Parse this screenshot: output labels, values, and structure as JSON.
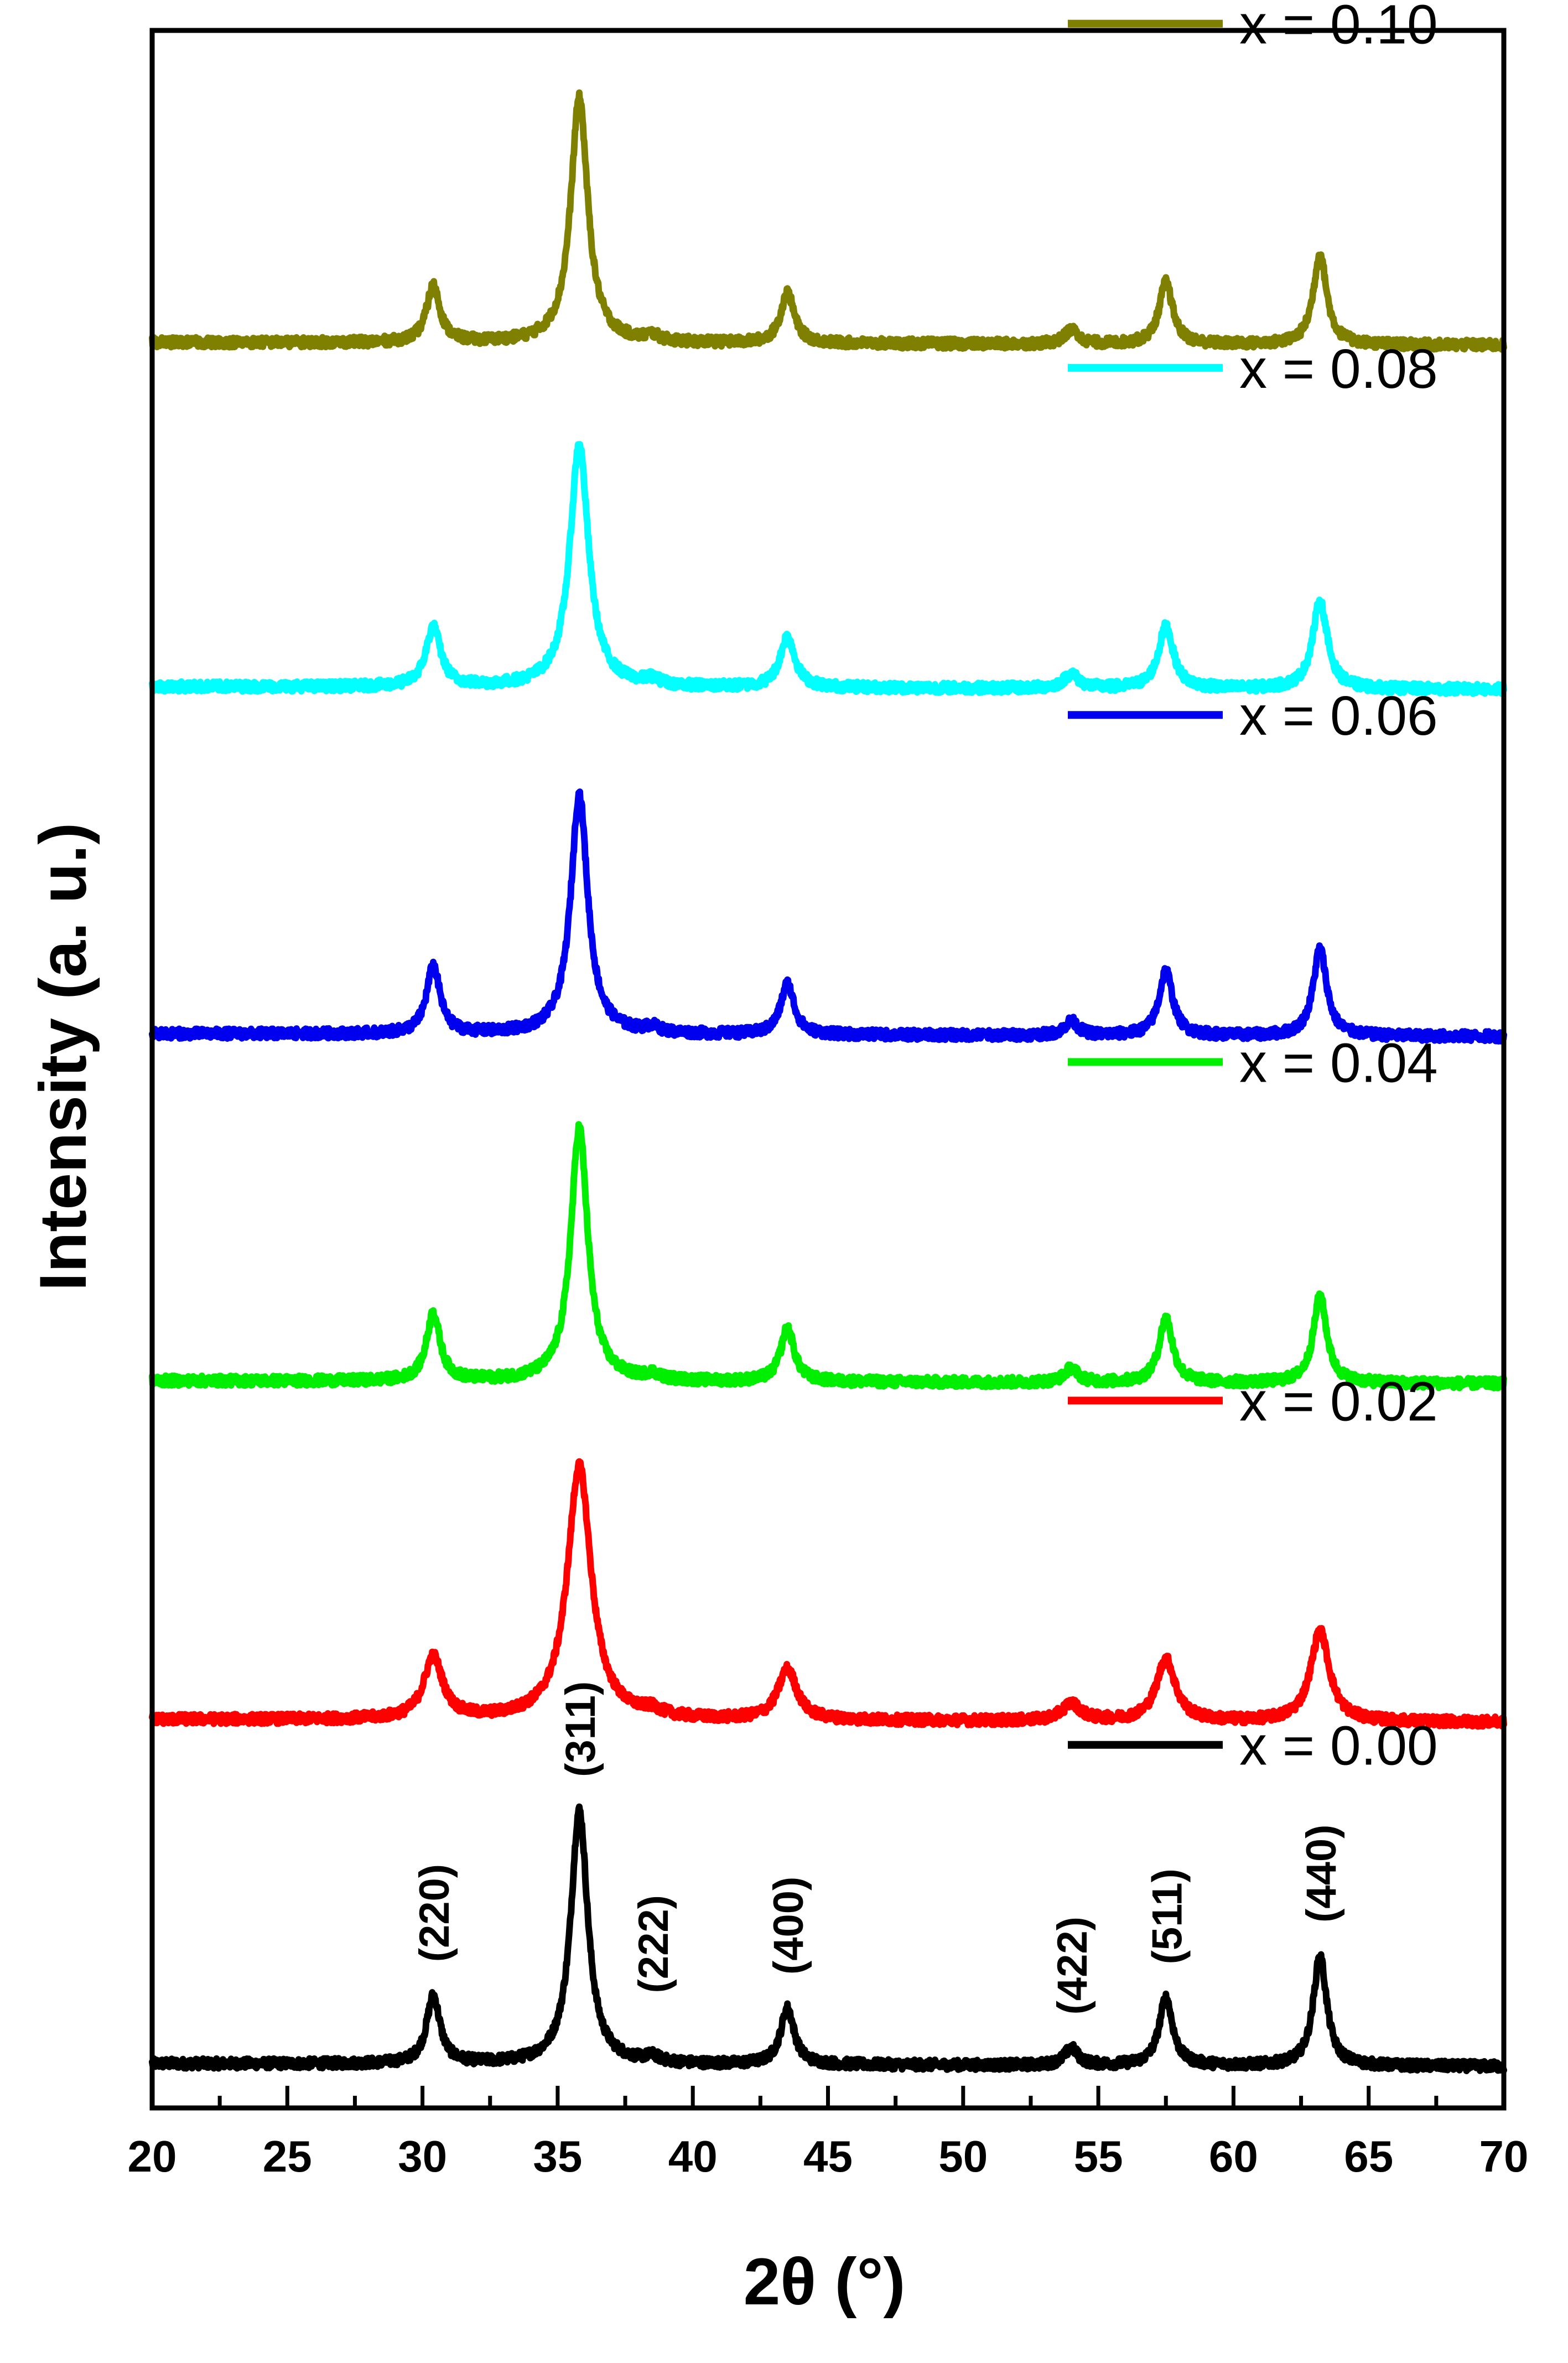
{
  "chart_data": {
    "type": "line",
    "title": "",
    "xlabel": "2θ (°)",
    "ylabel": "Intensity (a. u.)",
    "xlim": [
      20,
      70
    ],
    "xticks": [
      20,
      25,
      30,
      35,
      40,
      45,
      50,
      55,
      60,
      65,
      70
    ],
    "xtick_labels": [
      "20",
      "25",
      "30",
      "35",
      "40",
      "45",
      "50",
      "55",
      "60",
      "65",
      "70"
    ],
    "y_ticks_shown": false,
    "grid": false,
    "legend": "inline labels at upper right of each trace",
    "peaks": [
      {
        "position": 30.4,
        "label": "(220)"
      },
      {
        "position": 35.8,
        "label": "(311)"
      },
      {
        "position": 38.5,
        "label": "(222)"
      },
      {
        "position": 43.5,
        "label": "(400)"
      },
      {
        "position": 54.0,
        "label": "(422)"
      },
      {
        "position": 57.5,
        "label": "(511)"
      },
      {
        "position": 63.2,
        "label": "(440)"
      }
    ],
    "series": [
      {
        "name": "x = 0.00",
        "color": "#000000",
        "offset": 0,
        "baseline": 1.0,
        "slope": -0.1,
        "widths": 1.0,
        "peaks": [
          [
            30.4,
            2.4
          ],
          [
            35.8,
            9.0
          ],
          [
            38.5,
            0.2
          ],
          [
            43.5,
            2.0
          ],
          [
            54.0,
            0.6
          ],
          [
            57.5,
            2.4
          ],
          [
            63.2,
            3.9
          ]
        ]
      },
      {
        "name": "x = 0.02",
        "color": "#ff0000",
        "offset": 12.2,
        "baseline": 1.0,
        "slope": -0.1,
        "widths": 1.4,
        "peaks": [
          [
            30.4,
            2.2
          ],
          [
            35.8,
            9.0
          ],
          [
            38.5,
            0.2
          ],
          [
            43.5,
            1.8
          ],
          [
            54.0,
            0.6
          ],
          [
            57.5,
            2.2
          ],
          [
            63.2,
            3.2
          ]
        ]
      },
      {
        "name": "x = 0.04",
        "color": "#00ee00",
        "offset": 24.2,
        "baseline": 1.0,
        "slope": -0.1,
        "widths": 1.0,
        "peaks": [
          [
            30.4,
            2.4
          ],
          [
            35.8,
            9.0
          ],
          [
            38.5,
            0.2
          ],
          [
            43.5,
            1.9
          ],
          [
            54.0,
            0.5
          ],
          [
            57.5,
            2.3
          ],
          [
            63.2,
            3.1
          ]
        ]
      },
      {
        "name": "x = 0.06",
        "color": "#0000ee",
        "offset": 36.5,
        "baseline": 1.0,
        "slope": -0.1,
        "widths": 1.0,
        "peaks": [
          [
            30.4,
            2.4
          ],
          [
            35.8,
            8.5
          ],
          [
            38.5,
            0.2
          ],
          [
            43.5,
            1.8
          ],
          [
            54.0,
            0.5
          ],
          [
            57.5,
            2.3
          ],
          [
            63.2,
            3.1
          ]
        ]
      },
      {
        "name": "x = 0.08",
        "color": "#00ffff",
        "offset": 48.8,
        "baseline": 1.0,
        "slope": -0.1,
        "widths": 1.1,
        "peaks": [
          [
            30.4,
            2.1
          ],
          [
            35.8,
            8.6
          ],
          [
            38.5,
            0.2
          ],
          [
            43.5,
            1.8
          ],
          [
            54.0,
            0.5
          ],
          [
            57.5,
            2.2
          ],
          [
            63.2,
            3.1
          ]
        ]
      },
      {
        "name": "x = 0.10",
        "color": "#808000",
        "offset": 61.0,
        "baseline": 1.0,
        "slope": -0.1,
        "widths": 1.0,
        "peaks": [
          [
            30.4,
            2.0
          ],
          [
            35.8,
            8.7
          ],
          [
            38.5,
            0.2
          ],
          [
            43.5,
            1.8
          ],
          [
            54.0,
            0.5
          ],
          [
            57.5,
            2.2
          ],
          [
            63.2,
            3.2
          ]
        ]
      }
    ]
  }
}
